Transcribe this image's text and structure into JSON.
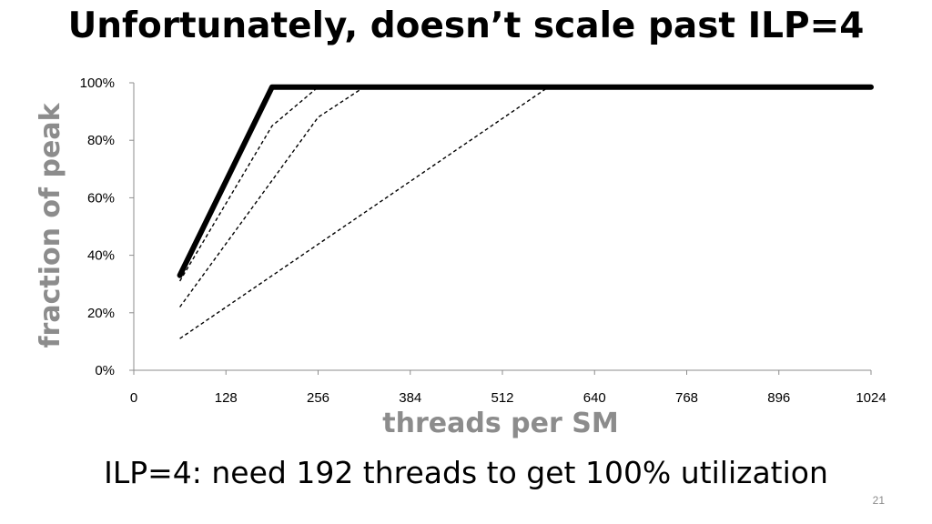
{
  "slide": {
    "title": "Unfortunately, doesn’t scale past ILP=4",
    "caption": "ILP=4: need 192 threads to get 100% utilization",
    "page_number": "21"
  },
  "chart_data": {
    "type": "line",
    "title": "",
    "xlabel": "threads per SM",
    "ylabel": "fraction of peak",
    "xlim": [
      0,
      1024
    ],
    "ylim": [
      0,
      100
    ],
    "x_ticks": [
      0,
      128,
      256,
      384,
      512,
      640,
      768,
      896,
      1024
    ],
    "x_tick_labels": [
      "0",
      "128",
      "256",
      "384",
      "512",
      "640",
      "768",
      "896",
      "1024"
    ],
    "y_ticks": [
      0,
      20,
      40,
      60,
      80,
      100
    ],
    "y_tick_labels": [
      "0%",
      "20%",
      "40%",
      "60%",
      "80%",
      "100%"
    ],
    "grid": false,
    "legend": "none",
    "series": [
      {
        "style": "solid-thick",
        "color": "#000000",
        "x": [
          64,
          192,
          1024
        ],
        "y": [
          33,
          98.5,
          98.5
        ]
      },
      {
        "style": "dashed",
        "color": "#000000",
        "x": [
          64,
          192,
          256,
          1024
        ],
        "y": [
          31,
          85,
          98.5,
          98.5
        ]
      },
      {
        "style": "dashed",
        "color": "#000000",
        "x": [
          64,
          256,
          320,
          1024
        ],
        "y": [
          22,
          88,
          98.5,
          98.5
        ]
      },
      {
        "style": "dashed",
        "color": "#000000",
        "x": [
          64,
          576,
          1024
        ],
        "y": [
          11,
          98.5,
          98.5
        ]
      }
    ]
  }
}
